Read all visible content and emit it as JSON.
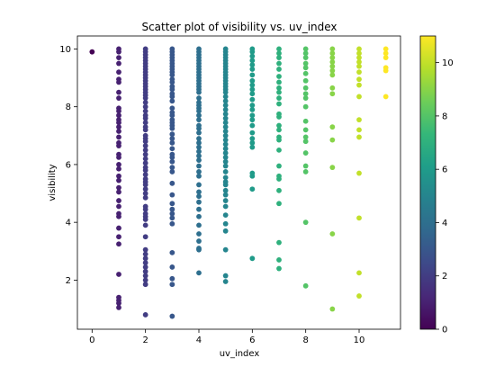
{
  "chart_data": {
    "type": "scatter",
    "title": "Scatter plot of visibility vs. uv_index",
    "xlabel": "uv_index",
    "ylabel": "visibility",
    "xlim": [
      -0.55,
      11.55
    ],
    "ylim": [
      0.3,
      10.45
    ],
    "xticks": [
      "0",
      "2",
      "4",
      "6",
      "8",
      "10"
    ],
    "yticks": [
      "2",
      "4",
      "6",
      "8",
      "10"
    ],
    "colorbar": {
      "colormap": "viridis",
      "range": [
        0,
        11
      ],
      "ticks": [
        "0",
        "2",
        "4",
        "6",
        "8",
        "10"
      ],
      "stops": [
        "#440154",
        "#482878",
        "#3e4989",
        "#31688e",
        "#26828e",
        "#1f9e89",
        "#35b779",
        "#6ece58",
        "#b5de2b",
        "#fde725"
      ]
    },
    "color_by": "uv_index",
    "grid": false,
    "series": [
      {
        "x": 0,
        "y": [
          9.9
        ]
      },
      {
        "x": 1,
        "y": [
          10.0,
          9.9,
          9.7,
          9.5,
          9.2,
          8.95,
          8.85,
          8.5,
          8.3,
          7.95,
          7.85,
          7.7,
          7.55,
          7.45,
          7.3,
          7.15,
          6.95,
          6.75,
          6.65,
          6.35,
          6.25,
          6.0,
          5.85,
          5.6,
          5.45,
          5.2,
          5.05,
          4.75,
          4.55,
          4.3,
          4.2,
          3.8,
          3.5,
          3.25,
          2.2,
          1.4,
          1.3,
          1.2,
          1.05
        ]
      },
      {
        "x": 2,
        "y": [
          10.0,
          9.9,
          9.8,
          9.7,
          9.6,
          9.5,
          9.4,
          9.3,
          9.2,
          9.1,
          9.0,
          8.9,
          8.8,
          8.7,
          8.6,
          8.5,
          8.4,
          8.3,
          8.15,
          8.0,
          7.85,
          7.7,
          7.6,
          7.45,
          7.3,
          7.2,
          7.0,
          6.9,
          6.8,
          6.65,
          6.5,
          6.35,
          6.2,
          6.05,
          5.9,
          5.8,
          5.65,
          5.5,
          5.4,
          5.3,
          5.15,
          5.0,
          4.85,
          4.55,
          4.45,
          4.3,
          4.2,
          4.1,
          3.9,
          3.5,
          3.05,
          2.9,
          2.75,
          2.6,
          2.45,
          2.3,
          2.15,
          2.0,
          1.85,
          0.8
        ]
      },
      {
        "x": 3,
        "y": [
          10.0,
          9.9,
          9.8,
          9.7,
          9.6,
          9.5,
          9.4,
          9.3,
          9.2,
          9.1,
          8.95,
          8.85,
          8.7,
          8.6,
          8.45,
          8.35,
          8.2,
          7.95,
          7.8,
          7.7,
          7.55,
          7.45,
          7.35,
          7.25,
          7.05,
          6.9,
          6.75,
          6.55,
          6.35,
          6.25,
          6.1,
          5.9,
          5.75,
          5.35,
          4.95,
          4.65,
          4.45,
          4.3,
          4.15,
          3.95,
          2.95,
          2.45,
          2.05,
          1.85,
          0.75
        ]
      },
      {
        "x": 4,
        "y": [
          10.0,
          9.9,
          9.8,
          9.7,
          9.6,
          9.5,
          9.4,
          9.3,
          9.2,
          9.1,
          9.0,
          8.9,
          8.8,
          8.7,
          8.6,
          8.5,
          8.3,
          8.15,
          8.05,
          7.95,
          7.85,
          7.7,
          7.55,
          7.35,
          7.25,
          7.1,
          6.9,
          6.75,
          6.6,
          6.45,
          6.3,
          6.15,
          5.95,
          5.75,
          5.6,
          5.3,
          5.05,
          4.9,
          4.7,
          4.45,
          4.2,
          3.9,
          3.6,
          3.35,
          3.1,
          3.05,
          2.25
        ]
      },
      {
        "x": 5,
        "y": [
          10.0,
          9.9,
          9.8,
          9.7,
          9.6,
          9.5,
          9.4,
          9.3,
          9.2,
          9.1,
          9.0,
          8.9,
          8.8,
          8.7,
          8.6,
          8.5,
          8.35,
          8.2,
          8.05,
          7.9,
          7.75,
          7.6,
          7.45,
          7.3,
          7.15,
          7.0,
          6.85,
          6.7,
          6.55,
          6.4,
          6.25,
          6.1,
          5.95,
          5.75,
          5.55,
          5.4,
          5.3,
          5.1,
          4.95,
          4.75,
          4.55,
          4.25,
          3.95,
          3.7,
          3.05,
          2.15,
          1.95
        ]
      },
      {
        "x": 6,
        "y": [
          10.0,
          9.9,
          9.75,
          9.6,
          9.45,
          9.3,
          9.1,
          8.9,
          8.75,
          8.6,
          8.45,
          8.25,
          8.05,
          7.9,
          7.7,
          7.55,
          7.35,
          7.1,
          6.9,
          6.75,
          6.6,
          5.7,
          5.6,
          5.15,
          2.75
        ]
      },
      {
        "x": 7,
        "y": [
          10.0,
          9.85,
          9.7,
          9.5,
          9.3,
          9.05,
          8.85,
          8.65,
          8.5,
          8.3,
          8.1,
          7.75,
          7.65,
          7.35,
          7.2,
          6.95,
          6.85,
          6.5,
          5.95,
          5.6,
          5.5,
          5.1,
          4.65,
          3.3,
          2.7,
          2.4
        ]
      },
      {
        "x": 8,
        "y": [
          10.0,
          9.85,
          9.7,
          9.5,
          9.35,
          9.15,
          8.9,
          8.65,
          8.45,
          8.3,
          8.0,
          7.5,
          7.2,
          6.95,
          6.8,
          6.4,
          5.95,
          5.75,
          4.0,
          1.8
        ]
      },
      {
        "x": 9,
        "y": [
          10.0,
          9.85,
          9.7,
          9.55,
          9.4,
          9.25,
          9.1,
          8.65,
          8.45,
          7.3,
          6.85,
          5.9,
          3.6,
          1.0
        ]
      },
      {
        "x": 10,
        "y": [
          10.0,
          9.85,
          9.7,
          9.55,
          9.4,
          9.2,
          8.95,
          8.75,
          8.35,
          7.55,
          7.2,
          6.95,
          5.7,
          4.15,
          2.25,
          1.45
        ]
      },
      {
        "x": 11,
        "y": [
          10.0,
          9.85,
          9.7,
          9.35,
          9.25,
          8.35
        ]
      }
    ]
  }
}
